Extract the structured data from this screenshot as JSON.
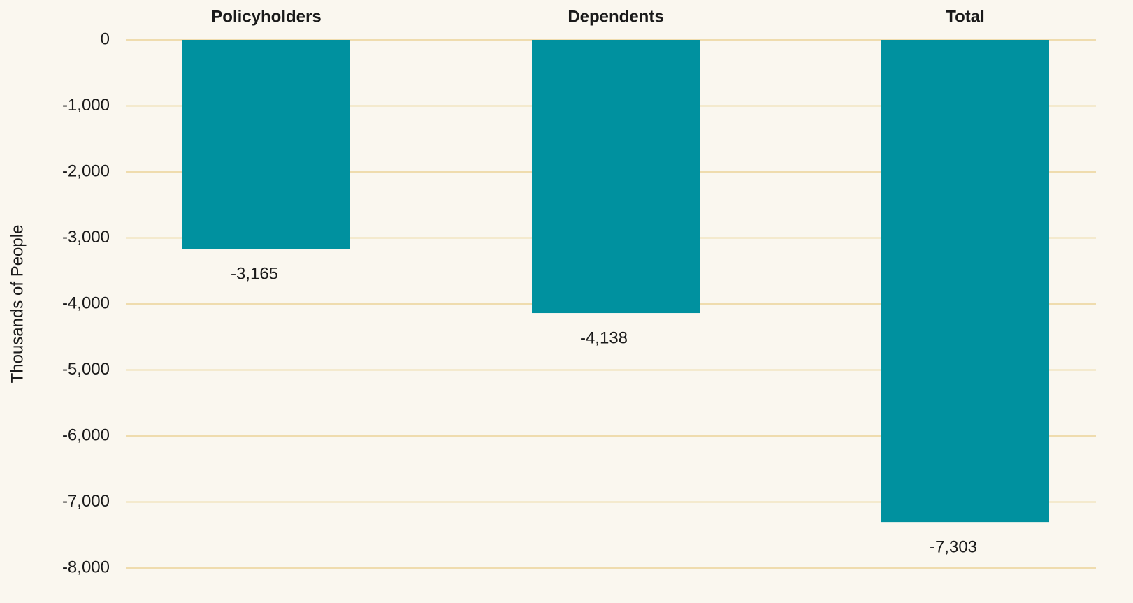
{
  "chart_data": {
    "type": "bar",
    "y_label": "Thousands of People",
    "categories": [
      "Policyholders",
      "Dependents",
      "Total"
    ],
    "values": [
      -3165,
      -4138,
      -7303
    ],
    "value_labels": [
      "-3,165",
      "-4,138",
      "-7,303"
    ],
    "color": "#00919f",
    "ylim": [
      -8000,
      0
    ],
    "yticks": [
      {
        "value": -8000,
        "label": "-8,000"
      },
      {
        "value": -7000,
        "label": "-7,000"
      },
      {
        "value": -6000,
        "label": "-6,000"
      },
      {
        "value": -5000,
        "label": "-5,000"
      },
      {
        "value": -4000,
        "label": "-4,000"
      },
      {
        "value": -3000,
        "label": "-3,000"
      },
      {
        "value": -2000,
        "label": "-2,000"
      },
      {
        "value": -1000,
        "label": "-1,000"
      },
      0
    ],
    "grid": true
  }
}
